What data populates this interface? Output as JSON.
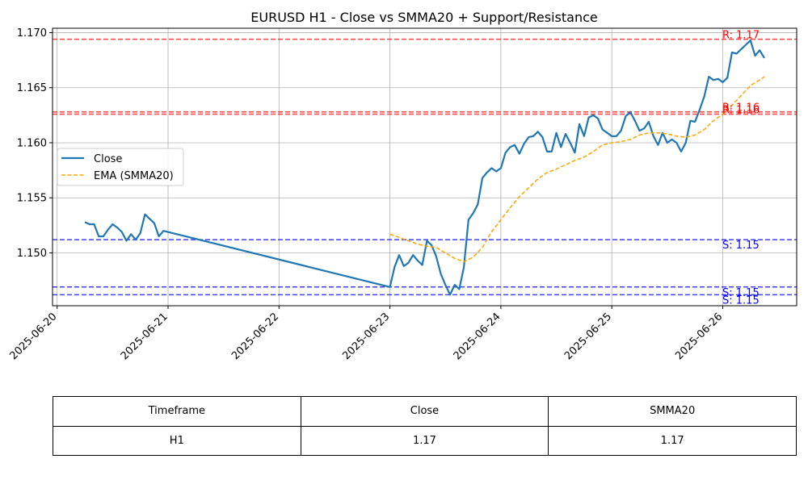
{
  "chart_data": {
    "type": "line",
    "title": "EURUSD H1 - Close vs SMMA20 + Support/Resistance",
    "xlabel": "",
    "ylabel": "",
    "x_ticks": [
      "2025-06-20",
      "2025-06-21",
      "2025-06-22",
      "2025-06-23",
      "2025-06-24",
      "2025-06-25",
      "2025-06-26"
    ],
    "y_ticks": [
      "1.150",
      "1.155",
      "1.160",
      "1.165",
      "1.170"
    ],
    "xlim": [
      "2025-06-19T23:00",
      "2025-06-26T16:00"
    ],
    "ylim": [
      1.1452,
      1.1704
    ],
    "grid": true,
    "legend_position": "center-left",
    "series": [
      {
        "name": "Close",
        "color": "#1f77b4",
        "style": "solid",
        "points": [
          [
            "2025-06-20T06:00",
            1.1528
          ],
          [
            "2025-06-20T07:00",
            1.1526
          ],
          [
            "2025-06-20T08:00",
            1.1526
          ],
          [
            "2025-06-20T09:00",
            1.1515
          ],
          [
            "2025-06-20T10:00",
            1.1515
          ],
          [
            "2025-06-20T11:00",
            1.1521
          ],
          [
            "2025-06-20T12:00",
            1.1526
          ],
          [
            "2025-06-20T13:00",
            1.1523
          ],
          [
            "2025-06-20T14:00",
            1.1519
          ],
          [
            "2025-06-20T15:00",
            1.1511
          ],
          [
            "2025-06-20T16:00",
            1.1517
          ],
          [
            "2025-06-20T17:00",
            1.1512
          ],
          [
            "2025-06-20T18:00",
            1.1518
          ],
          [
            "2025-06-20T19:00",
            1.1535
          ],
          [
            "2025-06-20T20:00",
            1.1531
          ],
          [
            "2025-06-20T21:00",
            1.1527
          ],
          [
            "2025-06-20T22:00",
            1.1515
          ],
          [
            "2025-06-20T23:00",
            1.152
          ],
          [
            "2025-06-23T00:00",
            1.1469
          ],
          [
            "2025-06-23T01:00",
            1.1487
          ],
          [
            "2025-06-23T02:00",
            1.1498
          ],
          [
            "2025-06-23T03:00",
            1.1488
          ],
          [
            "2025-06-23T04:00",
            1.1491
          ],
          [
            "2025-06-23T05:00",
            1.1498
          ],
          [
            "2025-06-23T06:00",
            1.1493
          ],
          [
            "2025-06-23T07:00",
            1.1489
          ],
          [
            "2025-06-23T08:00",
            1.1511
          ],
          [
            "2025-06-23T09:00",
            1.1507
          ],
          [
            "2025-06-23T10:00",
            1.1497
          ],
          [
            "2025-06-23T11:00",
            1.1481
          ],
          [
            "2025-06-23T12:00",
            1.1471
          ],
          [
            "2025-06-23T13:00",
            1.1462
          ],
          [
            "2025-06-23T14:00",
            1.1471
          ],
          [
            "2025-06-23T15:00",
            1.1467
          ],
          [
            "2025-06-23T16:00",
            1.1487
          ],
          [
            "2025-06-23T17:00",
            1.153
          ],
          [
            "2025-06-23T18:00",
            1.1536
          ],
          [
            "2025-06-23T19:00",
            1.1544
          ],
          [
            "2025-06-23T20:00",
            1.1568
          ],
          [
            "2025-06-23T21:00",
            1.1573
          ],
          [
            "2025-06-23T22:00",
            1.1577
          ],
          [
            "2025-06-23T23:00",
            1.1574
          ],
          [
            "2025-06-24T00:00",
            1.1577
          ],
          [
            "2025-06-24T01:00",
            1.1591
          ],
          [
            "2025-06-24T02:00",
            1.1596
          ],
          [
            "2025-06-24T03:00",
            1.1598
          ],
          [
            "2025-06-24T04:00",
            1.159
          ],
          [
            "2025-06-24T05:00",
            1.1599
          ],
          [
            "2025-06-24T06:00",
            1.1605
          ],
          [
            "2025-06-24T07:00",
            1.1606
          ],
          [
            "2025-06-24T08:00",
            1.161
          ],
          [
            "2025-06-24T09:00",
            1.1605
          ],
          [
            "2025-06-24T10:00",
            1.1592
          ],
          [
            "2025-06-24T11:00",
            1.1592
          ],
          [
            "2025-06-24T12:00",
            1.1609
          ],
          [
            "2025-06-24T13:00",
            1.1596
          ],
          [
            "2025-06-24T14:00",
            1.1608
          ],
          [
            "2025-06-24T15:00",
            1.16
          ],
          [
            "2025-06-24T16:00",
            1.1591
          ],
          [
            "2025-06-24T17:00",
            1.1617
          ],
          [
            "2025-06-24T18:00",
            1.1606
          ],
          [
            "2025-06-24T19:00",
            1.1623
          ],
          [
            "2025-06-24T20:00",
            1.1625
          ],
          [
            "2025-06-24T21:00",
            1.1622
          ],
          [
            "2025-06-24T22:00",
            1.1612
          ],
          [
            "2025-06-24T23:00",
            1.1609
          ],
          [
            "2025-06-25T00:00",
            1.1606
          ],
          [
            "2025-06-25T01:00",
            1.1606
          ],
          [
            "2025-06-25T02:00",
            1.1611
          ],
          [
            "2025-06-25T03:00",
            1.1624
          ],
          [
            "2025-06-25T04:00",
            1.1628
          ],
          [
            "2025-06-25T05:00",
            1.162
          ],
          [
            "2025-06-25T06:00",
            1.1611
          ],
          [
            "2025-06-25T07:00",
            1.1613
          ],
          [
            "2025-06-25T08:00",
            1.1619
          ],
          [
            "2025-06-25T09:00",
            1.1606
          ],
          [
            "2025-06-25T10:00",
            1.1598
          ],
          [
            "2025-06-25T11:00",
            1.1609
          ],
          [
            "2025-06-25T12:00",
            1.16
          ],
          [
            "2025-06-25T13:00",
            1.1603
          ],
          [
            "2025-06-25T14:00",
            1.16
          ],
          [
            "2025-06-25T15:00",
            1.1592
          ],
          [
            "2025-06-25T16:00",
            1.16
          ],
          [
            "2025-06-25T17:00",
            1.162
          ],
          [
            "2025-06-25T18:00",
            1.1619
          ],
          [
            "2025-06-25T19:00",
            1.163
          ],
          [
            "2025-06-25T20:00",
            1.1642
          ],
          [
            "2025-06-25T21:00",
            1.166
          ],
          [
            "2025-06-25T22:00",
            1.1657
          ],
          [
            "2025-06-25T23:00",
            1.1658
          ],
          [
            "2025-06-26T00:00",
            1.1655
          ],
          [
            "2025-06-26T01:00",
            1.1659
          ],
          [
            "2025-06-26T02:00",
            1.1682
          ],
          [
            "2025-06-26T03:00",
            1.1681
          ],
          [
            "2025-06-26T04:00",
            1.1685
          ],
          [
            "2025-06-26T05:00",
            1.1689
          ],
          [
            "2025-06-26T06:00",
            1.1693
          ],
          [
            "2025-06-26T07:00",
            1.1679
          ],
          [
            "2025-06-26T08:00",
            1.1684
          ],
          [
            "2025-06-26T09:00",
            1.1677
          ]
        ]
      },
      {
        "name": "EMA (SMMA20)",
        "color": "#ffa500",
        "style": "dashed",
        "points": [
          [
            "2025-06-23T00:00",
            1.1517
          ],
          [
            "2025-06-23T02:00",
            1.1514
          ],
          [
            "2025-06-23T04:00",
            1.1511
          ],
          [
            "2025-06-23T06:00",
            1.1508
          ],
          [
            "2025-06-23T08:00",
            1.1506
          ],
          [
            "2025-06-23T10:00",
            1.1505
          ],
          [
            "2025-06-23T12:00",
            1.15
          ],
          [
            "2025-06-23T14:00",
            1.1495
          ],
          [
            "2025-06-23T16:00",
            1.1492
          ],
          [
            "2025-06-23T18:00",
            1.1496
          ],
          [
            "2025-06-23T20:00",
            1.1505
          ],
          [
            "2025-06-23T22:00",
            1.1519
          ],
          [
            "2025-06-24T00:00",
            1.153
          ],
          [
            "2025-06-24T02:00",
            1.1541
          ],
          [
            "2025-06-24T04:00",
            1.1551
          ],
          [
            "2025-06-24T06:00",
            1.1559
          ],
          [
            "2025-06-24T08:00",
            1.1567
          ],
          [
            "2025-06-24T10:00",
            1.1573
          ],
          [
            "2025-06-24T12:00",
            1.1576
          ],
          [
            "2025-06-24T14:00",
            1.158
          ],
          [
            "2025-06-24T16:00",
            1.1584
          ],
          [
            "2025-06-24T18:00",
            1.1587
          ],
          [
            "2025-06-24T20:00",
            1.1592
          ],
          [
            "2025-06-24T22:00",
            1.1598
          ],
          [
            "2025-06-25T00:00",
            1.16
          ],
          [
            "2025-06-25T02:00",
            1.1601
          ],
          [
            "2025-06-25T04:00",
            1.1603
          ],
          [
            "2025-06-25T06:00",
            1.1607
          ],
          [
            "2025-06-25T08:00",
            1.1609
          ],
          [
            "2025-06-25T10:00",
            1.1609
          ],
          [
            "2025-06-25T12:00",
            1.1608
          ],
          [
            "2025-06-25T14:00",
            1.1606
          ],
          [
            "2025-06-25T16:00",
            1.1605
          ],
          [
            "2025-06-25T18:00",
            1.1607
          ],
          [
            "2025-06-25T20:00",
            1.1612
          ],
          [
            "2025-06-25T22:00",
            1.162
          ],
          [
            "2025-06-26T00:00",
            1.1626
          ],
          [
            "2025-06-26T02:00",
            1.1634
          ],
          [
            "2025-06-26T04:00",
            1.1643
          ],
          [
            "2025-06-26T06:00",
            1.1652
          ],
          [
            "2025-06-26T08:00",
            1.1657
          ],
          [
            "2025-06-26T09:00",
            1.166
          ]
        ]
      }
    ],
    "levels": [
      {
        "kind": "resistance",
        "value": 1.1694,
        "label": "R: 1.17",
        "color": "#ff0000"
      },
      {
        "kind": "resistance",
        "value": 1.1628,
        "label": "R: 1.16",
        "color": "#ff0000"
      },
      {
        "kind": "resistance",
        "value": 1.1626,
        "label": "R: 1.16",
        "color": "#ff0000"
      },
      {
        "kind": "support",
        "value": 1.1512,
        "label": "S: 1.15",
        "color": "#0000ff"
      },
      {
        "kind": "support",
        "value": 1.1469,
        "label": "S: 1.15",
        "color": "#0000ff"
      },
      {
        "kind": "support",
        "value": 1.1462,
        "label": "S: 1.15",
        "color": "#0000ff"
      }
    ]
  },
  "table": {
    "headers": [
      "Timeframe",
      "Close",
      "SMMA20"
    ],
    "rows": [
      [
        "H1",
        "1.17",
        "1.17"
      ]
    ]
  }
}
